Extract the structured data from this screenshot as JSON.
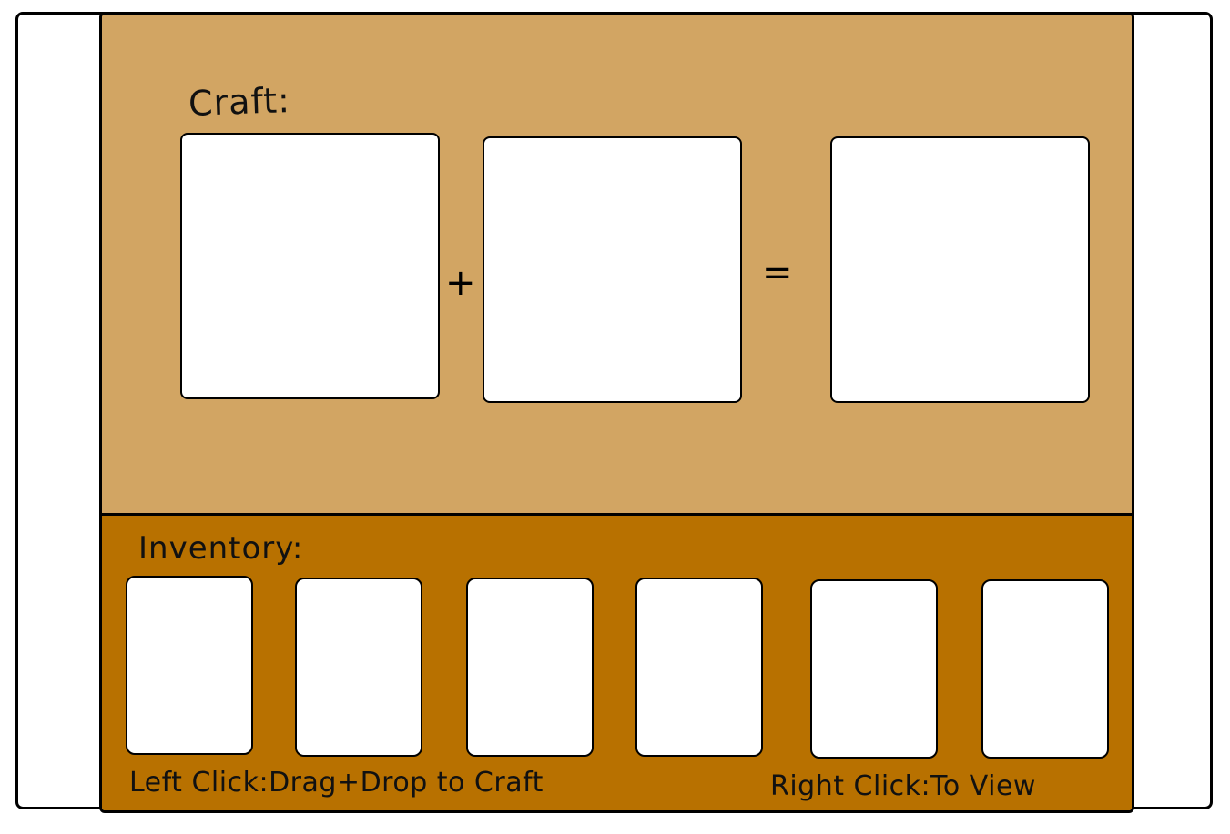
{
  "craft": {
    "title": "Craft:",
    "plus": "+",
    "equals": "="
  },
  "inventory": {
    "title": "Inventory:",
    "slot_count": 6
  },
  "hints": {
    "left": "Left Click:Drag+Drop to Craft",
    "right": "Right Click:To View"
  }
}
